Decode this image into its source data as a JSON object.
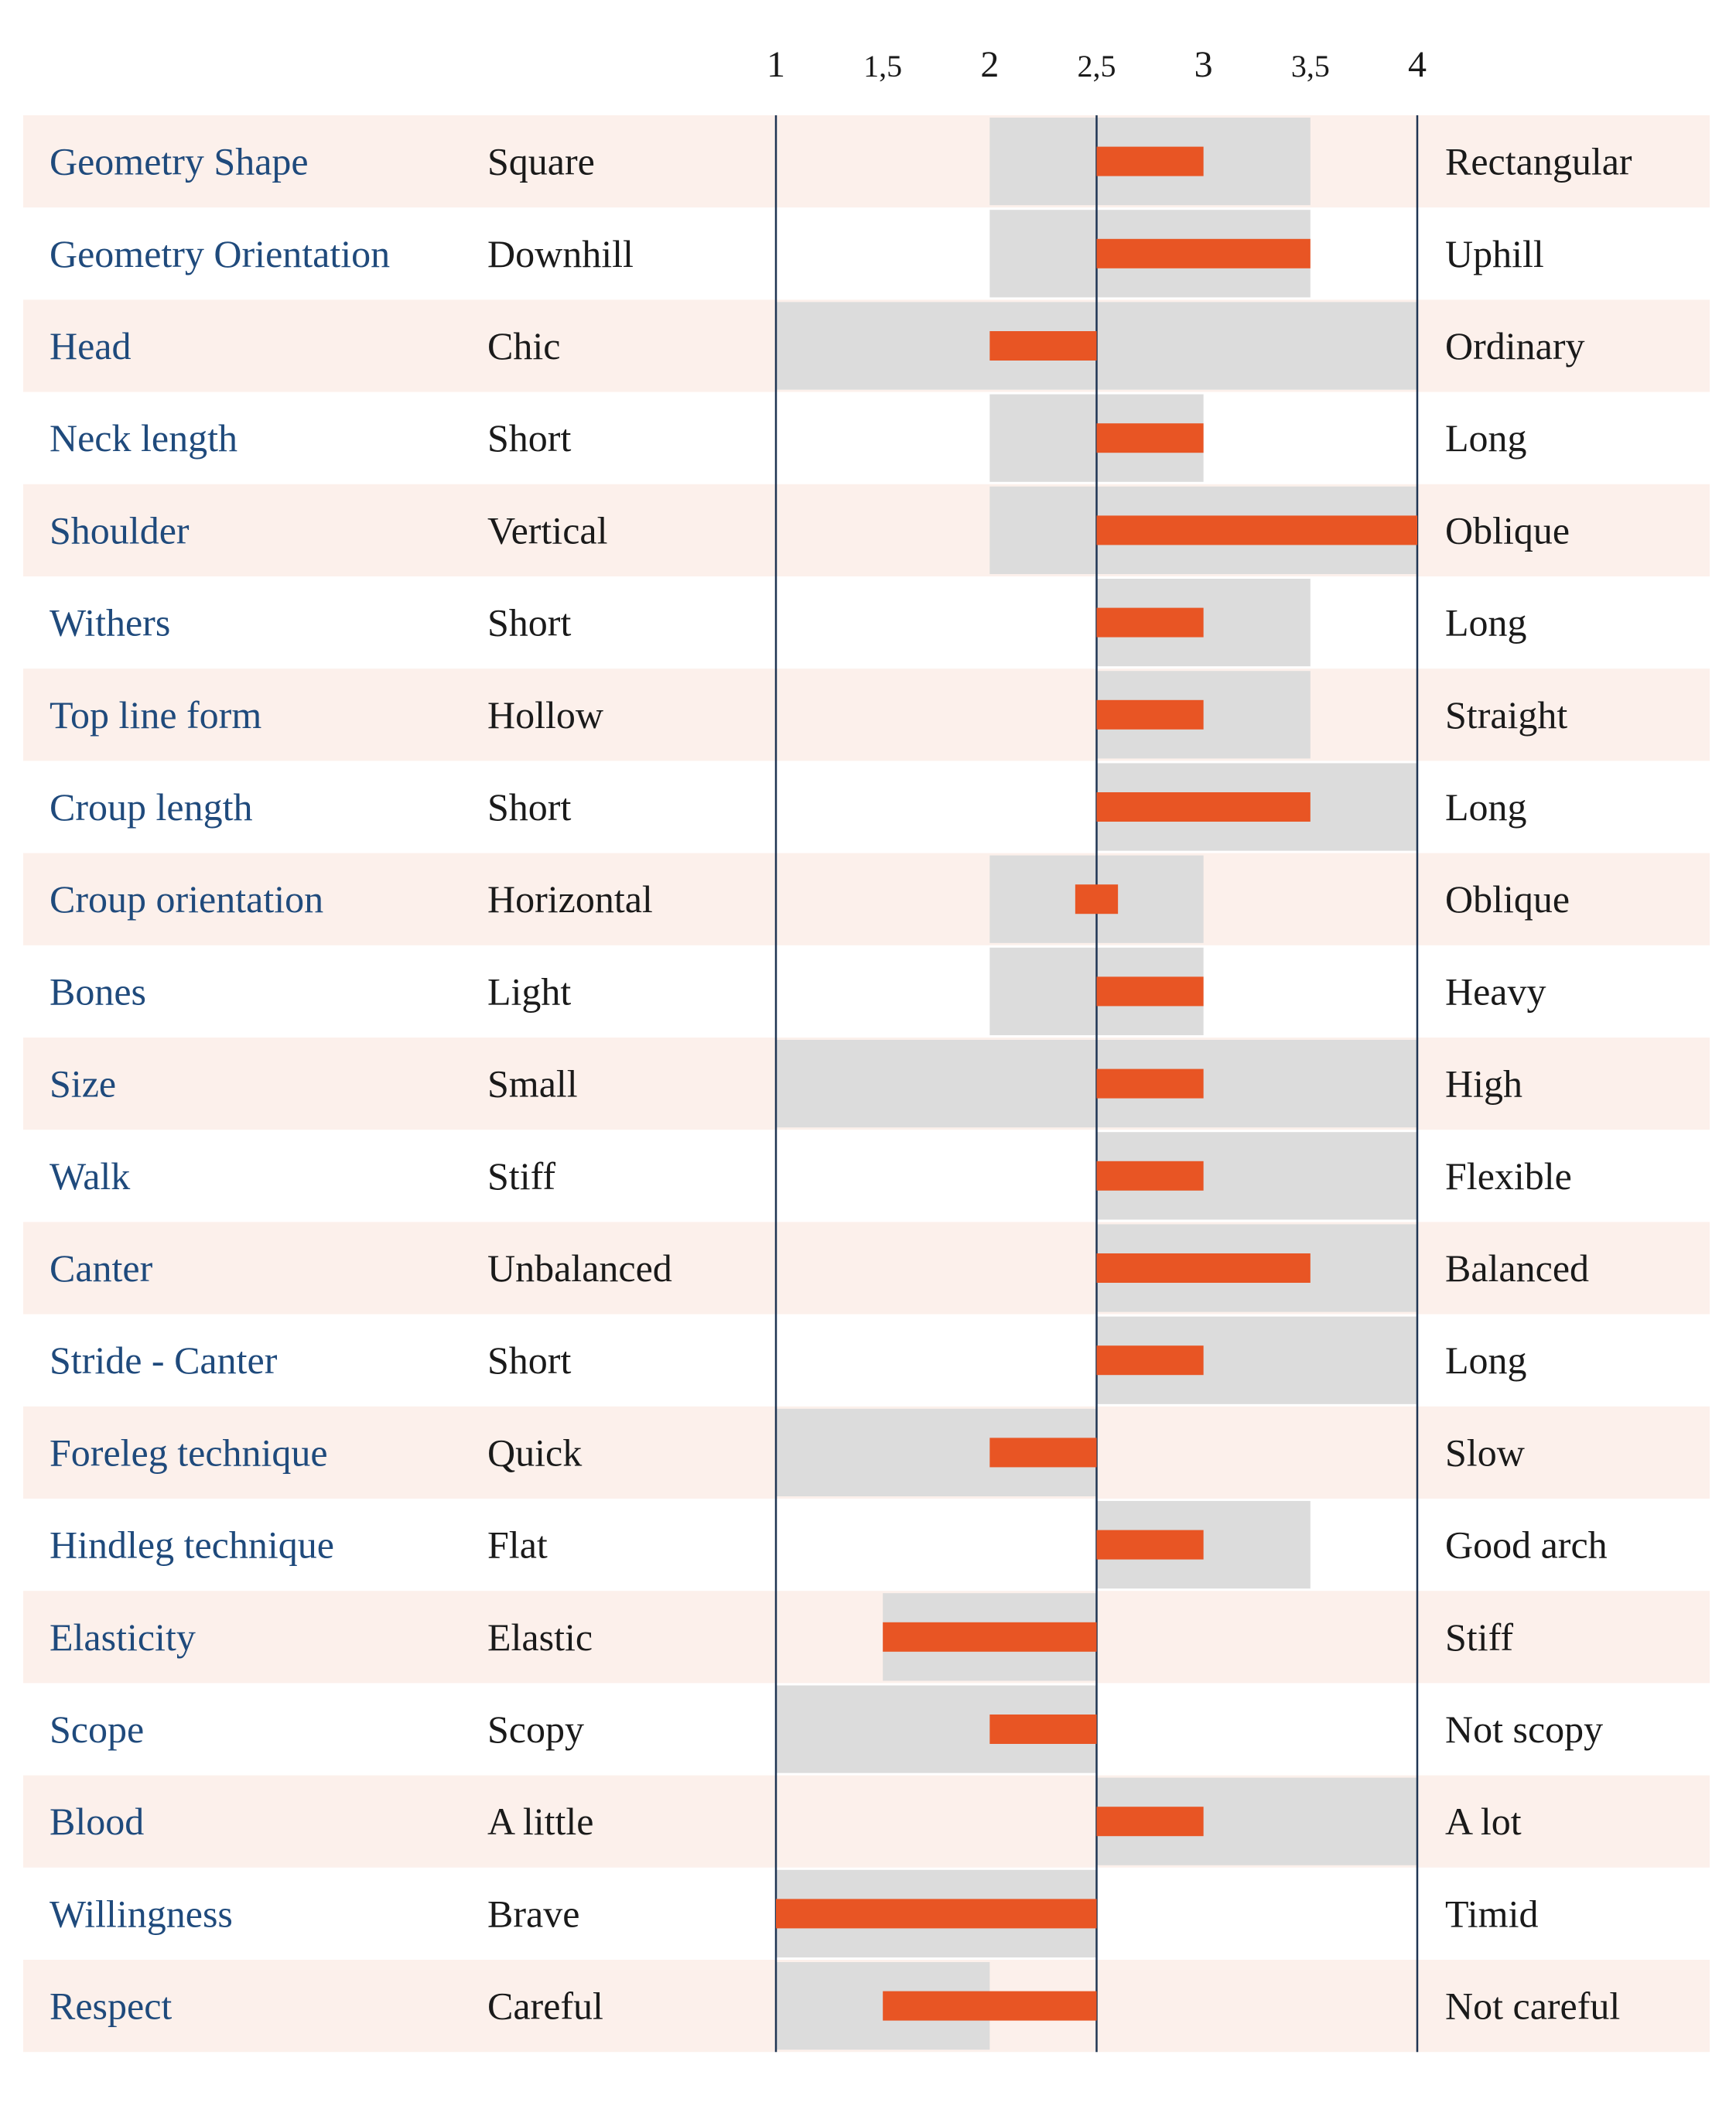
{
  "colors": {
    "row_band": "#fcf0eb",
    "range_bar": "#dcdcdc",
    "score_bar": "#e85524",
    "axis_line": "#1f3553",
    "trait_text": "#1f4a7c",
    "pole_text": "#1a1a1a"
  },
  "chart_data": {
    "type": "bar",
    "xlim": [
      1,
      4
    ],
    "center": 2.5,
    "ticks": [
      {
        "value": 1,
        "label": "1"
      },
      {
        "value": 1.5,
        "label": "1,5"
      },
      {
        "value": 2,
        "label": "2"
      },
      {
        "value": 2.5,
        "label": "2,5"
      },
      {
        "value": 3,
        "label": "3"
      },
      {
        "value": 3.5,
        "label": "3,5"
      },
      {
        "value": 4,
        "label": "4"
      }
    ],
    "rows": [
      {
        "trait": "Geometry Shape",
        "low": "Square",
        "high": "Rectangular",
        "range": [
          2,
          3.5
        ],
        "score": 3
      },
      {
        "trait": "Geometry Orientation",
        "low": "Downhill",
        "high": "Uphill",
        "range": [
          2,
          3.5
        ],
        "score": 3.5
      },
      {
        "trait": "Head",
        "low": "Chic",
        "high": "Ordinary",
        "range": [
          1,
          4
        ],
        "score": 2
      },
      {
        "trait": "Neck length",
        "low": "Short",
        "high": "Long",
        "range": [
          2,
          3
        ],
        "score": 3
      },
      {
        "trait": "Shoulder",
        "low": "Vertical",
        "high": "Oblique",
        "range": [
          2,
          4
        ],
        "score": 4
      },
      {
        "trait": "Withers",
        "low": "Short",
        "high": "Long",
        "range": [
          2.5,
          3.5
        ],
        "score": 3
      },
      {
        "trait": "Top line form",
        "low": "Hollow",
        "high": "Straight",
        "range": [
          2.5,
          3.5
        ],
        "score": 3
      },
      {
        "trait": "Croup length",
        "low": "Short",
        "high": "Long",
        "range": [
          2.5,
          4
        ],
        "score": 3.5
      },
      {
        "trait": "Croup orientation",
        "low": "Horizontal",
        "high": "Oblique",
        "range": [
          2,
          3
        ],
        "score_interval": [
          2.4,
          2.6
        ]
      },
      {
        "trait": "Bones",
        "low": "Light",
        "high": "Heavy",
        "range": [
          2,
          3
        ],
        "score": 3
      },
      {
        "trait": "Size",
        "low": "Small",
        "high": "High",
        "range": [
          1,
          4
        ],
        "score": 3
      },
      {
        "trait": "Walk",
        "low": "Stiff",
        "high": "Flexible",
        "range": [
          2.5,
          4
        ],
        "score": 3
      },
      {
        "trait": "Canter",
        "low": "Unbalanced",
        "high": "Balanced",
        "range": [
          2.5,
          4
        ],
        "score": 3.5
      },
      {
        "trait": "Stride - Canter",
        "low": "Short",
        "high": "Long",
        "range": [
          2.5,
          4
        ],
        "score": 3
      },
      {
        "trait": "Foreleg technique",
        "low": "Quick",
        "high": "Slow",
        "range": [
          1,
          2.5
        ],
        "score": 2
      },
      {
        "trait": "Hindleg technique",
        "low": "Flat",
        "high": "Good arch",
        "range": [
          2.5,
          3.5
        ],
        "score": 3
      },
      {
        "trait": "Elasticity",
        "low": "Elastic",
        "high": "Stiff",
        "range": [
          1.5,
          2.5
        ],
        "score": 1.5
      },
      {
        "trait": "Scope",
        "low": "Scopy",
        "high": "Not scopy",
        "range": [
          1,
          2.5
        ],
        "score": 2
      },
      {
        "trait": "Blood",
        "low": "A little",
        "high": "A lot",
        "range": [
          2.5,
          4
        ],
        "score": 3
      },
      {
        "trait": "Willingness",
        "low": "Brave",
        "high": "Timid",
        "range": [
          1,
          2.5
        ],
        "score": 1
      },
      {
        "trait": "Respect",
        "low": "Careful",
        "high": "Not careful",
        "range": [
          1,
          2
        ],
        "score": 1.5
      }
    ]
  }
}
